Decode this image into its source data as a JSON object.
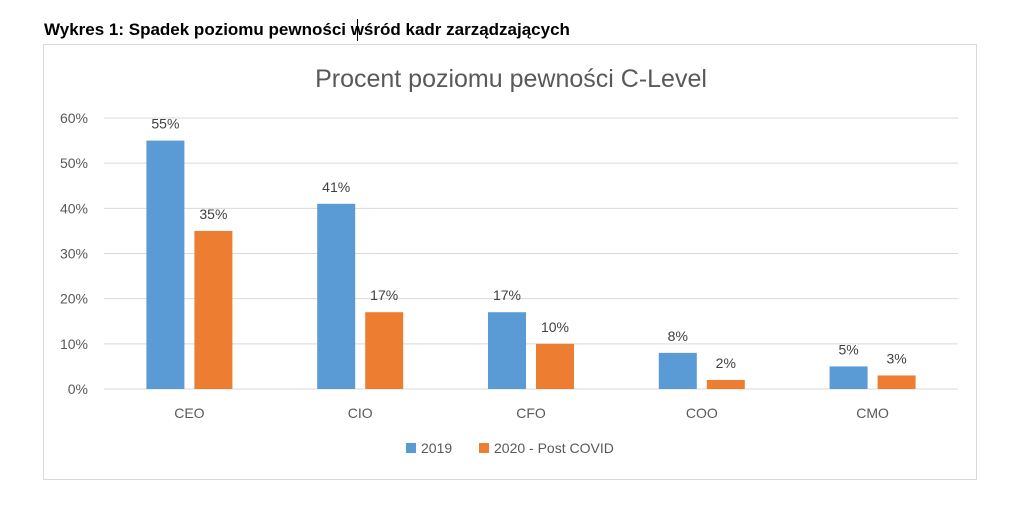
{
  "document": {
    "heading": "Wykres 1: Spadek poziomu pewności wśród kadr zarządzających"
  },
  "chart_data": {
    "type": "bar",
    "title": "Procent poziomu pewności C-Level",
    "xlabel": "",
    "ylabel": "",
    "categories": [
      "CEO",
      "CIO",
      "CFO",
      "COO",
      "CMO"
    ],
    "series": [
      {
        "name": "2019",
        "color": "#5b9bd5",
        "values": [
          55,
          41,
          17,
          8,
          5
        ],
        "labels": [
          "55%",
          "41%",
          "17%",
          "8%",
          "5%"
        ]
      },
      {
        "name": "2020 - Post COVID",
        "color": "#ed7d31",
        "values": [
          35,
          17,
          10,
          2,
          3
        ],
        "labels": [
          "35%",
          "17%",
          "10%",
          "2%",
          "3%"
        ]
      }
    ],
    "ylim": [
      0,
      60
    ],
    "yticks": [
      0,
      10,
      20,
      30,
      40,
      50,
      60
    ],
    "ytick_labels": [
      "0%",
      "10%",
      "20%",
      "30%",
      "40%",
      "50%",
      "60%"
    ],
    "grid": true,
    "legend": "bottom",
    "gridline_color": "#d9d9d9",
    "text_color": "#595959"
  }
}
